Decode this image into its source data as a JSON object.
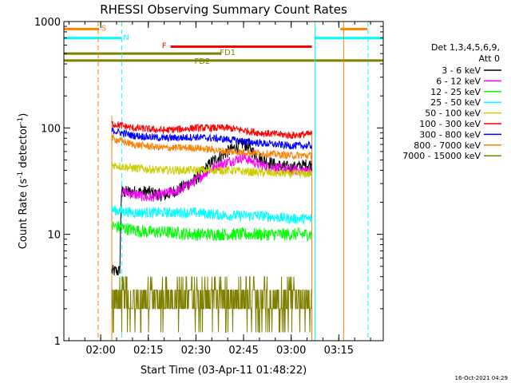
{
  "chart_data": {
    "type": "line",
    "title": "RHESSI Observing Summary Count Rates",
    "xlabel": "Start Time (03-Apr-11 01:48:22)",
    "ylabel": "Count Rate (s",
    "ylabel_sup": "-1",
    "ylabel_tail": " detector",
    "ylabel_sup2": "-1",
    "ylabel_close": ")",
    "xlim_min": [
      108.4,
      209
    ],
    "ylim": [
      1,
      1000
    ],
    "yscale": "log",
    "x_ticks": [
      {
        "v": 120,
        "label": "02:00"
      },
      {
        "v": 135,
        "label": "02:15"
      },
      {
        "v": 150,
        "label": "02:30"
      },
      {
        "v": 165,
        "label": "02:45"
      },
      {
        "v": 180,
        "label": "03:00"
      },
      {
        "v": 195,
        "label": "03:15"
      }
    ],
    "y_ticks": [
      {
        "v": 1,
        "label": "1"
      },
      {
        "v": 10,
        "label": "10"
      },
      {
        "v": 100,
        "label": "100"
      },
      {
        "v": 1000,
        "label": "1000"
      }
    ],
    "footer": "16-Oct-2021 04:29",
    "legend_header": [
      "Det 1,3,4,5,6,9,",
      "Att 0"
    ],
    "data_start_min": 123.5,
    "data_end_min": 186.5,
    "series": [
      {
        "name": "3 - 6 keV",
        "color": "#000000",
        "x": [
          123.5,
          126,
          126.5,
          130,
          135,
          140,
          145,
          150,
          155,
          160,
          165,
          170,
          175,
          180,
          185,
          186.5
        ],
        "y": [
          4.5,
          4.5,
          25,
          25,
          25,
          23,
          27,
          33,
          48,
          60,
          72,
          52,
          45,
          42,
          45,
          45
        ],
        "noise": 0.06
      },
      {
        "name": "6 - 12 keV",
        "color": "#ff00ff",
        "x": [
          126.5,
          130,
          135,
          140,
          145,
          150,
          155,
          160,
          165,
          170,
          175,
          180,
          186.5
        ],
        "y": [
          25,
          24,
          22,
          24,
          26,
          32,
          42,
          48,
          53,
          45,
          42,
          40,
          40
        ],
        "noise": 0.05
      },
      {
        "name": "12 - 25 keV",
        "color": "#00ff00",
        "x": [
          123.5,
          130,
          135,
          140,
          150,
          160,
          170,
          180,
          186.5
        ],
        "y": [
          12,
          11,
          10.5,
          10.5,
          10,
          10,
          10,
          10,
          10
        ],
        "noise": 0.06
      },
      {
        "name": "25 - 50 keV",
        "color": "#00ffff",
        "x": [
          123.5,
          130,
          140,
          150,
          160,
          170,
          180,
          186.5
        ],
        "y": [
          17,
          16,
          16,
          16,
          15,
          15,
          14,
          14
        ],
        "noise": 0.05
      },
      {
        "name": "50 - 100 keV",
        "color": "#cccc00",
        "x": [
          123.5,
          130,
          140,
          150,
          160,
          170,
          180,
          186.5
        ],
        "y": [
          45,
          42,
          40,
          40,
          40,
          38,
          37,
          37
        ],
        "noise": 0.04
      },
      {
        "name": "100 - 300 keV",
        "color": "#ff0000",
        "x": [
          123.5,
          130,
          140,
          150,
          160,
          170,
          180,
          186.5
        ],
        "y": [
          110,
          100,
          95,
          100,
          100,
          90,
          85,
          88
        ],
        "noise": 0.035
      },
      {
        "name": "300 - 800 keV",
        "color": "#0000ff",
        "x": [
          123.5,
          130,
          140,
          150,
          160,
          170,
          180,
          186.5
        ],
        "y": [
          95,
          85,
          80,
          82,
          78,
          72,
          68,
          68
        ],
        "noise": 0.035
      },
      {
        "name": "800 - 7000 keV",
        "color": "#ff8000",
        "x": [
          123.5,
          130,
          140,
          150,
          160,
          170,
          180,
          186.5
        ],
        "y": [
          80,
          70,
          65,
          65,
          60,
          58,
          55,
          55
        ],
        "noise": 0.035
      },
      {
        "name": "7000 - 15000 keV",
        "color": "#808000",
        "x": [
          123.5,
          186.5
        ],
        "y": [
          2.5,
          2.5
        ],
        "noise": 0.2
      }
    ],
    "flag_bars": [
      {
        "label": "S",
        "color": "#ff8000",
        "x_start": 108.4,
        "x_end": 119.5,
        "y": 850
      },
      {
        "label": "S",
        "color": "#ff8000",
        "x_start": 195.5,
        "x_end": 204,
        "y": 850
      },
      {
        "label": "N",
        "color": "#00ffff",
        "x_start": 108.4,
        "x_end": 126.5,
        "y": 700
      },
      {
        "label": "N",
        "color": "#00ffff",
        "x_start": 187.5,
        "x_end": 209,
        "y": 700
      },
      {
        "label": "F",
        "color": "#ff0000",
        "x_start": 142,
        "x_end": 186.5,
        "y": 580
      },
      {
        "label": "FD1",
        "color": "#808000",
        "x_start": 108.4,
        "x_end": 158,
        "y": 500
      },
      {
        "label": "FD2",
        "color": "#808000",
        "x_start": 108.4,
        "x_end": 209,
        "y": 430
      }
    ],
    "flag_labels": [
      {
        "text": "S",
        "color": "#ff8000",
        "x": 121,
        "y": 880
      },
      {
        "text": "N",
        "color": "#00ffff",
        "x": 128,
        "y": 720
      },
      {
        "text": "F",
        "color": "#ff0000",
        "x": 140,
        "y": 600
      },
      {
        "text": "FD1",
        "color": "#808000",
        "x": 160,
        "y": 520
      },
      {
        "text": "FD2",
        "color": "#808000",
        "x": 152,
        "y": 430
      }
    ],
    "vlines": [
      {
        "x": 119.2,
        "color": "#ff8000",
        "dash": true
      },
      {
        "x": 126.6,
        "color": "#00ffff",
        "dash": true
      },
      {
        "x": 187.5,
        "color": "#00ffff",
        "dash": false
      },
      {
        "x": 196.5,
        "color": "#ff8000",
        "dash": false
      },
      {
        "x": 204.2,
        "color": "#00ffff",
        "dash": true
      }
    ]
  }
}
